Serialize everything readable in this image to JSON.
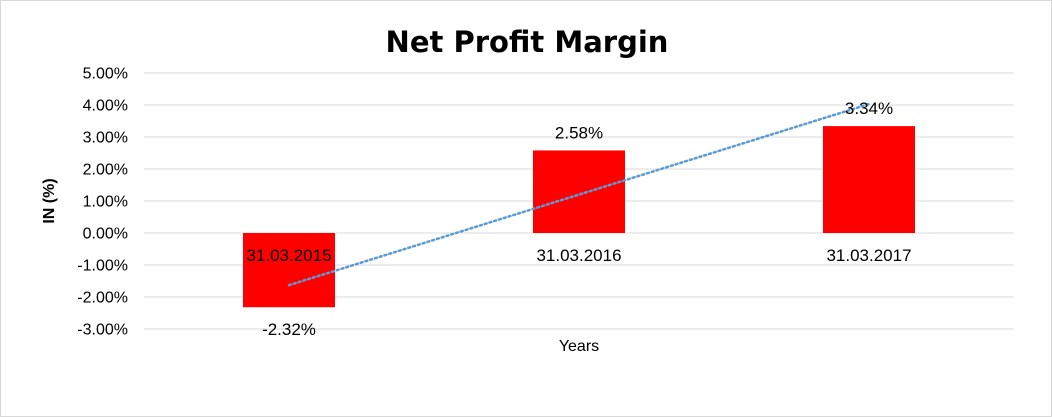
{
  "chart_data": {
    "type": "bar",
    "title": "Net Profit Margin",
    "xlabel": "Years",
    "ylabel": "IN (%)",
    "categories": [
      "31.03.2015",
      "31.03.2016",
      "31.03.2017"
    ],
    "values": [
      -2.32,
      2.58,
      3.34
    ],
    "data_labels": [
      "-2.32%",
      "2.58%",
      "3.34%"
    ],
    "ylim": [
      -3,
      5
    ],
    "yticks": [
      5,
      4,
      3,
      2,
      1,
      0,
      -1,
      -2,
      -3
    ],
    "ytick_labels": [
      "5.00%",
      "4.00%",
      "3.00%",
      "2.00%",
      "1.00%",
      "0.00%",
      "-1.00%",
      "-2.00%",
      "-3.00%"
    ],
    "grid": true,
    "bar_color": "#ff0000",
    "trendline": {
      "type": "linear",
      "style": "dotted",
      "color": "#5b9bd5"
    }
  }
}
